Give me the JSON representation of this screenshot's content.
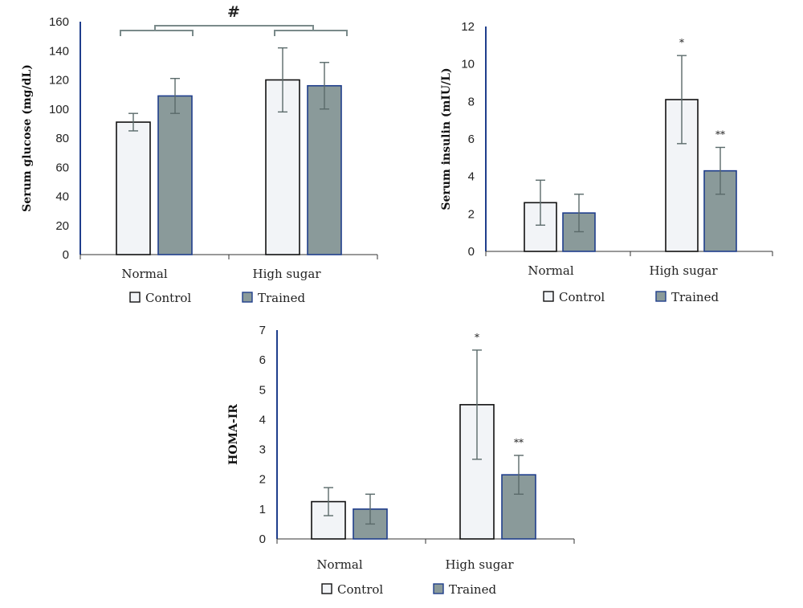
{
  "colors": {
    "control": "#f2f4f7",
    "trained": "#8a9a9a",
    "edge": "#1f3e8c",
    "axis": "#1f3e8c",
    "error": "#5a6a6a"
  },
  "legend": {
    "control": "Control",
    "trained": "Trained"
  },
  "chart_data": [
    {
      "type": "bar",
      "categories": [
        "Normal",
        "High sugar"
      ],
      "ylabel": "Serum glucose (mg/dL)",
      "ylim": [
        0,
        160
      ],
      "yticks": [
        "0",
        "20",
        "40",
        "60",
        "80",
        "100",
        "120",
        "140",
        "160"
      ],
      "series": [
        {
          "name": "Control",
          "values": [
            91,
            120
          ],
          "errors": [
            6,
            22
          ]
        },
        {
          "name": "Trained",
          "values": [
            109,
            116
          ],
          "errors": [
            12,
            16
          ]
        }
      ],
      "annotations": [
        "#"
      ],
      "stars": [
        [
          "",
          ""
        ],
        [
          "",
          ""
        ]
      ]
    },
    {
      "type": "bar",
      "categories": [
        "Normal",
        "High sugar"
      ],
      "ylabel": "Serum insulin (mIU/L)",
      "ylim": [
        0,
        12
      ],
      "yticks": [
        "0",
        "2",
        "4",
        "6",
        "8",
        "10",
        "12"
      ],
      "series": [
        {
          "name": "Control",
          "values": [
            2.6,
            8.1
          ],
          "errors": [
            1.2,
            2.35
          ]
        },
        {
          "name": "Trained",
          "values": [
            2.05,
            4.3
          ],
          "errors": [
            1.0,
            1.25
          ]
        }
      ],
      "stars": [
        [
          "",
          "*"
        ],
        [
          "",
          "**"
        ]
      ]
    },
    {
      "type": "bar",
      "categories": [
        "Normal",
        "High sugar"
      ],
      "ylabel": "HOMA-IR",
      "ylim": [
        0,
        7
      ],
      "yticks": [
        "0",
        "1",
        "2",
        "3",
        "4",
        "5",
        "6",
        "7"
      ],
      "series": [
        {
          "name": "Control",
          "values": [
            1.25,
            4.5
          ],
          "errors": [
            0.47,
            1.83
          ]
        },
        {
          "name": "Trained",
          "values": [
            1.0,
            2.15
          ],
          "errors": [
            0.5,
            0.65
          ]
        }
      ],
      "stars": [
        [
          "",
          "*"
        ],
        [
          "",
          "**"
        ]
      ]
    }
  ]
}
